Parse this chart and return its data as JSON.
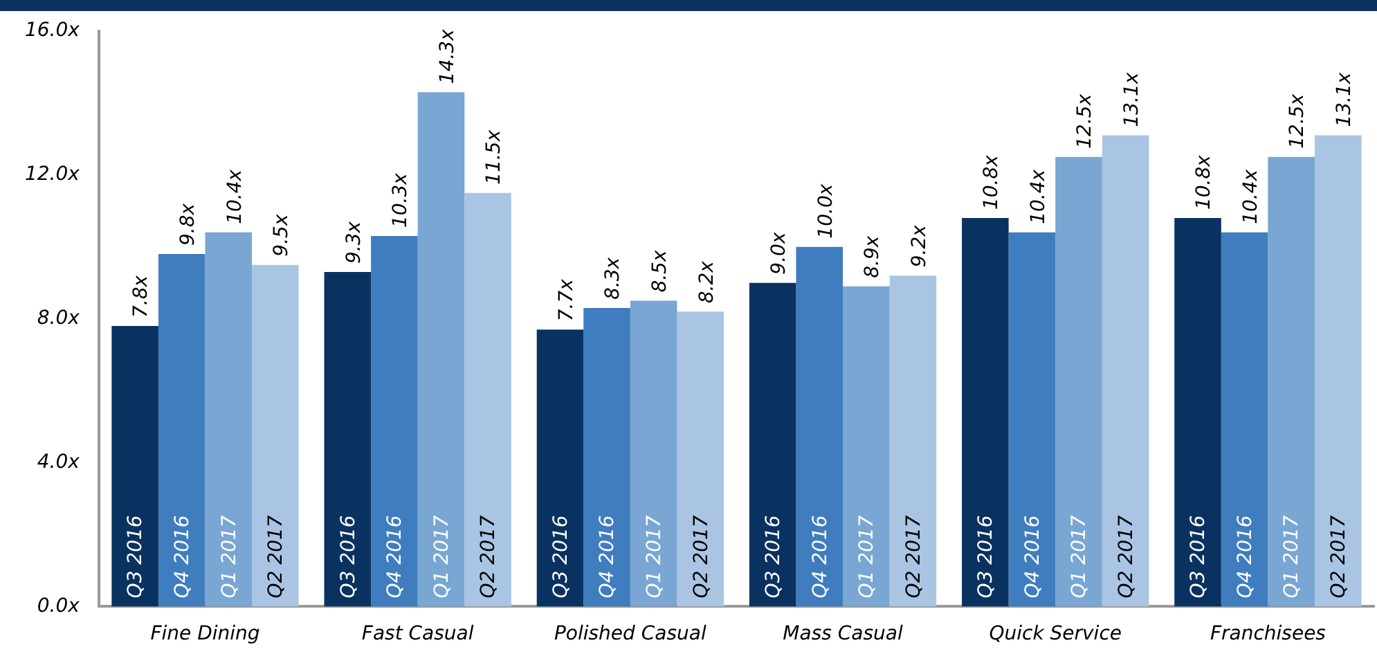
{
  "chart_data": {
    "type": "bar",
    "categories": [
      "Fine Dining",
      "Fast Casual",
      "Polished Casual",
      "Mass Casual",
      "Quick Service",
      "Franchisees"
    ],
    "series": [
      {
        "name": "Q3 2016",
        "color": "#0a3260",
        "values": [
          7.8,
          9.3,
          7.7,
          9.0,
          10.8,
          10.8
        ],
        "value_labels": [
          "7.8x",
          "9.3x",
          "7.7x",
          "9.0x",
          "10.8x",
          "10.8x"
        ]
      },
      {
        "name": "Q4 2016",
        "color": "#3f7dbf",
        "values": [
          9.8,
          10.3,
          8.3,
          10.0,
          10.4,
          10.4
        ],
        "value_labels": [
          "9.8x",
          "10.3x",
          "8.3x",
          "10.0x",
          "10.4x",
          "10.4x"
        ]
      },
      {
        "name": "Q1 2017",
        "color": "#79a6d2",
        "values": [
          10.4,
          14.3,
          8.5,
          8.9,
          12.5,
          12.5
        ],
        "value_labels": [
          "10.4x",
          "14.3x",
          "8.5x",
          "8.9x",
          "12.5x",
          "12.5x"
        ]
      },
      {
        "name": "Q2 2017",
        "color": "#a9c5e3",
        "values": [
          9.5,
          11.5,
          8.2,
          9.2,
          13.1,
          13.1
        ],
        "value_labels": [
          "9.5x",
          "11.5x",
          "8.2x",
          "9.2x",
          "13.1x",
          "13.1x"
        ]
      }
    ],
    "ylim": [
      0,
      16
    ],
    "yticks": [
      {
        "value": 0,
        "label": "0.0x"
      },
      {
        "value": 4,
        "label": "4.0x"
      },
      {
        "value": 8,
        "label": "8.0x"
      },
      {
        "value": 12,
        "label": "12.0x"
      },
      {
        "value": 16,
        "label": "16.0x"
      }
    ],
    "grid": false,
    "legend": false
  }
}
